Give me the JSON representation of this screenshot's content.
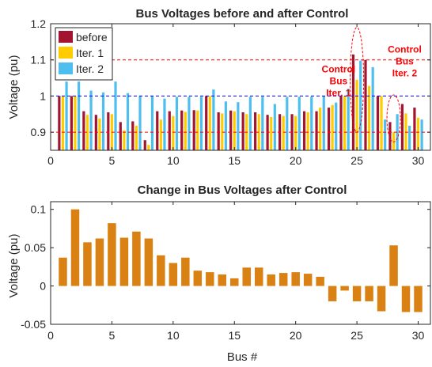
{
  "chart_data": [
    {
      "type": "bar",
      "title": "Bus Voltages before and after Control",
      "xlabel": "",
      "ylabel": "Voltage (pu)",
      "xlim": [
        0,
        31
      ],
      "ylim": [
        0.85,
        1.2
      ],
      "xticks": [
        "0",
        "5",
        "10",
        "15",
        "20",
        "25",
        "30"
      ],
      "yticks": [
        "0.9",
        "1",
        "1.1",
        "1.2"
      ],
      "x": [
        1,
        2,
        3,
        4,
        5,
        6,
        7,
        8,
        9,
        10,
        11,
        12,
        13,
        14,
        15,
        16,
        17,
        18,
        19,
        20,
        21,
        22,
        23,
        24,
        25,
        26,
        27,
        28,
        29,
        30
      ],
      "series": [
        {
          "name": "before",
          "color": "#a2142f",
          "values": [
            1.0,
            1.0,
            0.958,
            0.948,
            0.955,
            0.928,
            0.93,
            0.878,
            0.958,
            0.958,
            0.96,
            0.961,
            1.0,
            0.955,
            0.96,
            0.955,
            0.955,
            0.948,
            0.95,
            0.95,
            0.958,
            0.958,
            0.968,
            1.0,
            1.115,
            1.1,
            1.0,
            0.928,
            0.978,
            0.968
          ]
        },
        {
          "name": "Iter. 1",
          "color": "#ffcc00",
          "values": [
            1.0,
            1.0,
            0.948,
            0.938,
            0.95,
            0.905,
            0.918,
            0.865,
            0.935,
            0.945,
            0.956,
            0.96,
            1.0,
            0.952,
            0.958,
            0.95,
            0.95,
            0.942,
            0.945,
            0.945,
            0.955,
            0.968,
            0.975,
            1.0,
            1.045,
            1.028,
            1.0,
            0.9,
            0.952,
            0.94
          ]
        },
        {
          "name": "Iter. 2",
          "color": "#4dbeee",
          "values": [
            1.04,
            1.04,
            1.015,
            1.01,
            1.04,
            1.008,
            1.0,
            1.0,
            0.993,
            0.998,
            0.998,
            0.998,
            1.018,
            0.985,
            0.983,
            0.998,
            0.998,
            0.978,
            0.998,
            0.998,
            0.998,
            1.0,
            0.982,
            1.02,
            1.098,
            1.08,
            0.935,
            0.95,
            0.918,
            0.935
          ]
        }
      ],
      "reference_lines": [
        {
          "y": 1.1,
          "color": "#ff0000"
        },
        {
          "y": 1.0,
          "color": "#0000ff"
        },
        {
          "y": 0.9,
          "color": "#ff0000"
        }
      ],
      "annotations": [
        {
          "lines": [
            "Control",
            "Bus",
            "Iter. 1"
          ],
          "x": 23.5,
          "y": 1.065
        },
        {
          "lines": [
            "Control",
            "Bus",
            "Iter. 2"
          ],
          "x": 28.9,
          "y": 1.12
        }
      ],
      "highlight_ellipses": [
        {
          "cx": 25.0,
          "cy": 1.045,
          "rx": 0.55,
          "ry": 0.145
        },
        {
          "cx": 28.0,
          "cy": 0.938,
          "rx": 0.55,
          "ry": 0.065
        }
      ],
      "legend": "top-left"
    },
    {
      "type": "bar",
      "title": "Change in Bus Voltages after Control",
      "xlabel": "Bus #",
      "ylabel": "Voltage (pu)",
      "xlim": [
        0,
        31
      ],
      "ylim": [
        -0.05,
        0.11
      ],
      "xticks": [
        "0",
        "5",
        "10",
        "15",
        "20",
        "25",
        "30"
      ],
      "yticks": [
        "-0.05",
        "0",
        "0.05",
        "0.1"
      ],
      "color": "#d98213",
      "x": [
        1,
        2,
        3,
        4,
        5,
        6,
        7,
        8,
        9,
        10,
        11,
        12,
        13,
        14,
        15,
        16,
        17,
        18,
        19,
        20,
        21,
        22,
        23,
        24,
        25,
        26,
        27,
        28,
        29,
        30
      ],
      "values": [
        0.037,
        0.1,
        0.057,
        0.062,
        0.082,
        0.063,
        0.071,
        0.062,
        0.04,
        0.03,
        0.037,
        0.02,
        0.018,
        0.015,
        0.01,
        0.024,
        0.024,
        0.015,
        0.017,
        0.018,
        0.016,
        0.012,
        -0.02,
        -0.006,
        -0.02,
        -0.02,
        -0.033,
        0.053,
        -0.034,
        -0.034
      ]
    }
  ]
}
